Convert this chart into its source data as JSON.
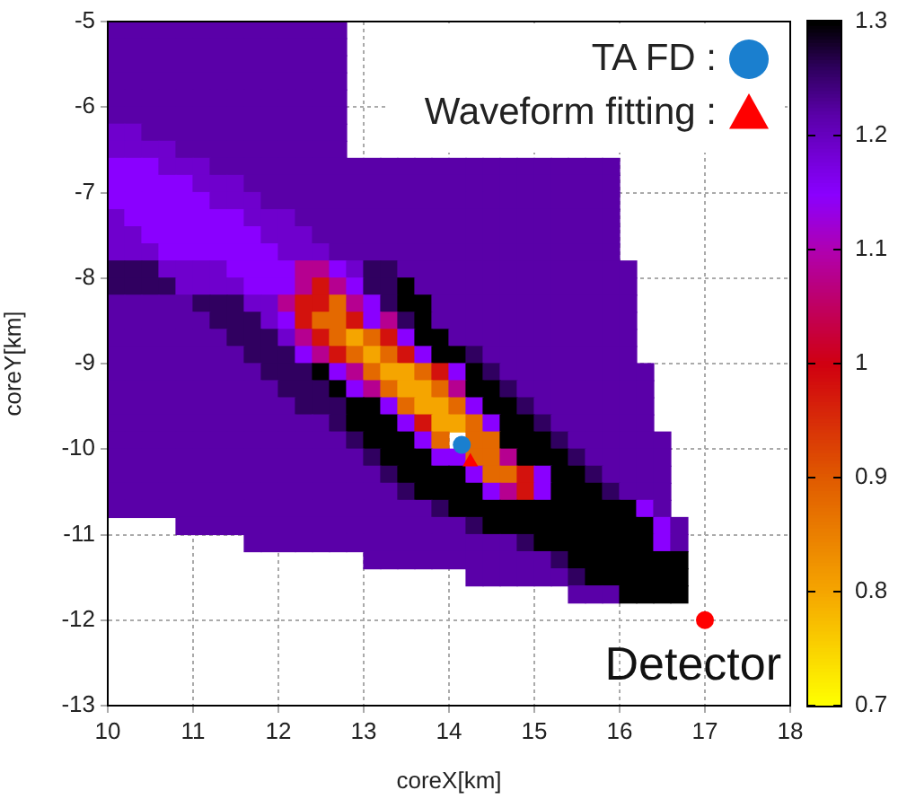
{
  "chart_data": {
    "type": "heatmap",
    "xlabel": "coreX[km]",
    "ylabel": "coreY[km]",
    "xlim": [
      10,
      18
    ],
    "xticks": [
      10,
      11,
      12,
      13,
      14,
      15,
      16,
      17,
      18
    ],
    "ylim": [
      -13,
      -5
    ],
    "yticks": [
      -13,
      -12,
      -11,
      -10,
      -9,
      -8,
      -7,
      -6,
      -5
    ],
    "grid": true,
    "legend": "top right",
    "clim": [
      0.7,
      1.3
    ],
    "cticks": [
      0.7,
      0.8,
      0.9,
      1,
      1.1,
      1.2,
      1.3
    ],
    "x": [
      10.1,
      10.3,
      10.5,
      10.7,
      10.9,
      11.1,
      11.3,
      11.5,
      11.7,
      11.9,
      12.1,
      12.3,
      12.5,
      12.7,
      12.9,
      13.1,
      13.3,
      13.5,
      13.7,
      13.9,
      14.1,
      14.3,
      14.5,
      14.7,
      14.9,
      15.1,
      15.3,
      15.5,
      15.7,
      15.9,
      16.1,
      16.3,
      16.5,
      16.7
    ],
    "y": [
      -5.1,
      -5.3,
      -5.5,
      -5.7,
      -5.9,
      -6.1,
      -6.3,
      -6.5,
      -6.7,
      -6.9,
      -7.1,
      -7.3,
      -7.5,
      -7.7,
      -7.9,
      -8.1,
      -8.3,
      -8.5,
      -8.7,
      -8.9,
      -9.1,
      -9.3,
      -9.5,
      -9.7,
      -9.9,
      -10.1,
      -10.3,
      -10.5,
      -10.7,
      -10.9,
      -11.1,
      -11.3,
      -11.5,
      -11.7
    ],
    "cells": [
      [
        1.22,
        1.22,
        1.22,
        1.22,
        1.22,
        1.22,
        1.22,
        1.22,
        1.22,
        1.22,
        1.22,
        1.22,
        1.22,
        1.22,
        null,
        null,
        null,
        null,
        null,
        null,
        null,
        null,
        null,
        null,
        null,
        null,
        null,
        null,
        null,
        null,
        null,
        null,
        null,
        null
      ],
      [
        1.22,
        1.22,
        1.22,
        1.22,
        1.22,
        1.22,
        1.22,
        1.22,
        1.22,
        1.22,
        1.22,
        1.22,
        1.22,
        1.22,
        null,
        null,
        null,
        null,
        null,
        null,
        null,
        null,
        null,
        null,
        null,
        null,
        null,
        null,
        null,
        null,
        null,
        null,
        null,
        null
      ],
      [
        1.22,
        1.22,
        1.22,
        1.22,
        1.22,
        1.22,
        1.22,
        1.22,
        1.22,
        1.22,
        1.22,
        1.22,
        1.22,
        1.22,
        null,
        null,
        null,
        null,
        null,
        null,
        null,
        null,
        null,
        null,
        null,
        null,
        null,
        null,
        null,
        null,
        null,
        null,
        null,
        null
      ],
      [
        1.22,
        1.22,
        1.22,
        1.22,
        1.22,
        1.22,
        1.22,
        1.22,
        1.22,
        1.22,
        1.22,
        1.22,
        1.22,
        1.22,
        null,
        null,
        null,
        null,
        null,
        null,
        null,
        null,
        null,
        null,
        null,
        null,
        null,
        null,
        null,
        null,
        null,
        null,
        null,
        null
      ],
      [
        1.22,
        1.22,
        1.22,
        1.22,
        1.22,
        1.22,
        1.22,
        1.22,
        1.22,
        1.22,
        1.22,
        1.22,
        1.22,
        1.22,
        null,
        null,
        null,
        null,
        null,
        null,
        null,
        null,
        null,
        null,
        null,
        null,
        null,
        null,
        null,
        null,
        null,
        null,
        null,
        null
      ],
      [
        1.22,
        1.22,
        1.22,
        1.22,
        1.22,
        1.22,
        1.22,
        1.22,
        1.22,
        1.22,
        1.22,
        1.22,
        1.22,
        1.22,
        null,
        null,
        null,
        null,
        null,
        null,
        null,
        null,
        null,
        null,
        null,
        null,
        null,
        null,
        null,
        null,
        null,
        null,
        null,
        null
      ],
      [
        1.19,
        1.19,
        1.22,
        1.22,
        1.22,
        1.22,
        1.22,
        1.22,
        1.22,
        1.22,
        1.22,
        1.22,
        1.22,
        1.22,
        null,
        null,
        null,
        null,
        null,
        null,
        null,
        null,
        null,
        null,
        null,
        null,
        null,
        null,
        null,
        null,
        null,
        null,
        null,
        null
      ],
      [
        1.19,
        1.19,
        1.19,
        1.19,
        1.22,
        1.22,
        1.22,
        1.22,
        1.22,
        1.22,
        1.22,
        1.22,
        1.22,
        1.22,
        null,
        null,
        null,
        null,
        null,
        null,
        null,
        null,
        null,
        null,
        null,
        null,
        null,
        null,
        null,
        null,
        null,
        null,
        null,
        null
      ],
      [
        1.15,
        1.15,
        1.15,
        1.19,
        1.19,
        1.19,
        1.22,
        1.22,
        1.22,
        1.22,
        1.22,
        1.22,
        1.22,
        1.22,
        1.22,
        1.22,
        1.22,
        1.22,
        1.22,
        1.22,
        1.22,
        1.22,
        1.22,
        1.22,
        1.22,
        1.22,
        1.22,
        1.22,
        1.22,
        1.22,
        null,
        null,
        null,
        null
      ],
      [
        1.15,
        1.15,
        1.15,
        1.15,
        1.15,
        1.19,
        1.19,
        1.19,
        1.22,
        1.22,
        1.22,
        1.22,
        1.22,
        1.22,
        1.22,
        1.22,
        1.22,
        1.22,
        1.22,
        1.22,
        1.22,
        1.22,
        1.22,
        1.22,
        1.22,
        1.22,
        1.22,
        1.22,
        1.22,
        1.22,
        null,
        null,
        null,
        null
      ],
      [
        1.15,
        1.15,
        1.15,
        1.15,
        1.15,
        1.15,
        1.19,
        1.19,
        1.19,
        1.22,
        1.22,
        1.22,
        1.22,
        1.22,
        1.22,
        1.22,
        1.22,
        1.22,
        1.22,
        1.22,
        1.22,
        1.22,
        1.22,
        1.22,
        1.22,
        1.22,
        1.22,
        1.22,
        1.22,
        1.22,
        null,
        null,
        null,
        null
      ],
      [
        1.19,
        1.15,
        1.15,
        1.15,
        1.15,
        1.15,
        1.15,
        1.15,
        1.19,
        1.19,
        1.19,
        1.22,
        1.22,
        1.22,
        1.22,
        1.22,
        1.22,
        1.22,
        1.22,
        1.22,
        1.22,
        1.22,
        1.22,
        1.22,
        1.22,
        1.22,
        1.22,
        1.22,
        1.22,
        1.22,
        null,
        null,
        null,
        null
      ],
      [
        1.19,
        1.19,
        1.15,
        1.15,
        1.15,
        1.15,
        1.15,
        1.15,
        1.15,
        1.19,
        1.19,
        1.19,
        1.22,
        1.22,
        1.22,
        1.22,
        1.22,
        1.22,
        1.22,
        1.22,
        1.22,
        1.22,
        1.22,
        1.22,
        1.22,
        1.22,
        1.22,
        1.22,
        1.22,
        1.22,
        null,
        null,
        null,
        null
      ],
      [
        1.19,
        1.19,
        1.19,
        1.15,
        1.15,
        1.15,
        1.15,
        1.15,
        1.15,
        1.15,
        1.19,
        1.19,
        1.19,
        1.22,
        1.22,
        1.22,
        1.22,
        1.22,
        1.22,
        1.22,
        1.22,
        1.22,
        1.22,
        1.22,
        1.22,
        1.22,
        1.22,
        1.22,
        1.22,
        1.22,
        null,
        null,
        null,
        null
      ],
      [
        1.26,
        1.26,
        1.26,
        1.19,
        1.19,
        1.19,
        1.19,
        1.15,
        1.15,
        1.15,
        1.15,
        1.08,
        1.08,
        1.15,
        1.19,
        1.26,
        1.26,
        1.22,
        1.22,
        1.22,
        1.22,
        1.22,
        1.22,
        1.22,
        1.22,
        1.22,
        1.22,
        1.22,
        1.22,
        1.22,
        1.22,
        null,
        null,
        null
      ],
      [
        1.26,
        1.26,
        1.26,
        1.26,
        1.19,
        1.19,
        1.19,
        1.19,
        1.15,
        1.15,
        1.15,
        1.08,
        0.98,
        1.08,
        1.15,
        1.26,
        1.26,
        1.3,
        1.22,
        1.22,
        1.22,
        1.22,
        1.22,
        1.22,
        1.22,
        1.22,
        1.22,
        1.22,
        1.22,
        1.22,
        1.22,
        null,
        null,
        null
      ],
      [
        1.22,
        1.22,
        1.22,
        1.22,
        1.22,
        1.26,
        1.26,
        1.26,
        1.19,
        1.19,
        1.08,
        0.98,
        0.98,
        0.88,
        1.08,
        1.15,
        1.26,
        1.3,
        1.3,
        1.22,
        1.22,
        1.22,
        1.22,
        1.22,
        1.22,
        1.22,
        1.22,
        1.22,
        1.22,
        1.22,
        1.22,
        null,
        null,
        null
      ],
      [
        1.22,
        1.22,
        1.22,
        1.22,
        1.22,
        1.22,
        1.26,
        1.26,
        1.26,
        1.19,
        1.15,
        0.98,
        0.88,
        0.88,
        0.98,
        1.15,
        1.08,
        1.26,
        1.3,
        1.22,
        1.22,
        1.22,
        1.22,
        1.22,
        1.22,
        1.22,
        1.22,
        1.22,
        1.22,
        1.22,
        1.22,
        null,
        null,
        null
      ],
      [
        1.22,
        1.22,
        1.22,
        1.22,
        1.22,
        1.22,
        1.22,
        1.26,
        1.26,
        1.26,
        1.19,
        1.08,
        0.98,
        0.88,
        0.8,
        0.88,
        0.98,
        1.15,
        1.3,
        1.3,
        1.22,
        1.22,
        1.22,
        1.22,
        1.22,
        1.22,
        1.22,
        1.22,
        1.22,
        1.22,
        1.22,
        null,
        null,
        null
      ],
      [
        1.22,
        1.22,
        1.22,
        1.22,
        1.22,
        1.22,
        1.22,
        1.22,
        1.26,
        1.26,
        1.26,
        1.15,
        1.08,
        0.98,
        0.88,
        0.8,
        0.88,
        0.98,
        1.15,
        1.3,
        1.3,
        1.26,
        1.22,
        1.22,
        1.22,
        1.22,
        1.22,
        1.22,
        1.22,
        1.22,
        1.22,
        null,
        null,
        null
      ],
      [
        1.22,
        1.22,
        1.22,
        1.22,
        1.22,
        1.22,
        1.22,
        1.22,
        1.22,
        1.26,
        1.26,
        1.26,
        1.3,
        1.15,
        1.08,
        0.88,
        0.8,
        0.8,
        0.88,
        0.98,
        1.15,
        1.3,
        1.26,
        1.22,
        1.22,
        1.22,
        1.22,
        1.22,
        1.22,
        1.22,
        1.22,
        1.22,
        null,
        null
      ],
      [
        1.22,
        1.22,
        1.22,
        1.22,
        1.22,
        1.22,
        1.22,
        1.22,
        1.22,
        1.22,
        1.26,
        1.26,
        1.26,
        1.3,
        1.15,
        1.08,
        0.88,
        0.8,
        0.8,
        0.88,
        1.08,
        1.3,
        1.3,
        1.26,
        1.22,
        1.22,
        1.22,
        1.22,
        1.22,
        1.22,
        1.22,
        1.22,
        null,
        null
      ],
      [
        1.22,
        1.22,
        1.22,
        1.22,
        1.22,
        1.22,
        1.22,
        1.22,
        1.22,
        1.22,
        1.22,
        1.26,
        1.26,
        1.26,
        1.3,
        1.3,
        1.15,
        0.88,
        0.8,
        0.8,
        0.88,
        1.15,
        1.3,
        1.3,
        1.26,
        1.22,
        1.22,
        1.22,
        1.22,
        1.22,
        1.22,
        1.22,
        null,
        null
      ],
      [
        1.22,
        1.22,
        1.22,
        1.22,
        1.22,
        1.22,
        1.22,
        1.22,
        1.22,
        1.22,
        1.22,
        1.22,
        1.22,
        1.26,
        1.3,
        1.3,
        1.3,
        1.15,
        0.98,
        0.8,
        0.8,
        0.88,
        1.15,
        1.3,
        1.3,
        1.26,
        1.22,
        1.22,
        1.22,
        1.22,
        1.22,
        1.22,
        null,
        null
      ],
      [
        1.22,
        1.22,
        1.22,
        1.22,
        1.22,
        1.22,
        1.22,
        1.22,
        1.22,
        1.22,
        1.22,
        1.22,
        1.22,
        1.22,
        1.26,
        1.3,
        1.3,
        1.3,
        1.15,
        0.88,
        null,
        0.88,
        0.88,
        1.3,
        1.3,
        1.3,
        1.26,
        1.22,
        1.22,
        1.22,
        1.22,
        1.22,
        1.22,
        null
      ],
      [
        1.22,
        1.22,
        1.22,
        1.22,
        1.22,
        1.22,
        1.22,
        1.22,
        1.22,
        1.22,
        1.22,
        1.22,
        1.22,
        1.22,
        1.22,
        1.26,
        1.3,
        1.3,
        1.3,
        1.15,
        1.15,
        0.88,
        0.88,
        1.08,
        1.3,
        1.3,
        1.3,
        1.26,
        1.22,
        1.22,
        1.22,
        1.22,
        1.22,
        null
      ],
      [
        1.22,
        1.22,
        1.22,
        1.22,
        1.22,
        1.22,
        1.22,
        1.22,
        1.22,
        1.22,
        1.22,
        1.22,
        1.22,
        1.22,
        1.22,
        1.22,
        1.26,
        1.3,
        1.3,
        1.3,
        1.3,
        1.15,
        0.88,
        0.88,
        0.98,
        1.15,
        1.3,
        1.3,
        1.26,
        1.22,
        1.22,
        1.22,
        1.22,
        null
      ],
      [
        1.22,
        1.22,
        1.22,
        1.22,
        1.22,
        1.22,
        1.22,
        1.22,
        1.22,
        1.22,
        1.22,
        1.22,
        1.22,
        1.22,
        1.22,
        1.22,
        1.22,
        1.26,
        1.3,
        1.3,
        1.3,
        1.3,
        1.15,
        1.08,
        0.98,
        1.15,
        1.3,
        1.3,
        1.3,
        1.26,
        1.22,
        1.22,
        1.22,
        null
      ],
      [
        1.22,
        1.22,
        1.22,
        1.22,
        1.22,
        1.22,
        1.22,
        1.22,
        1.22,
        1.22,
        1.22,
        1.22,
        1.22,
        1.22,
        1.22,
        1.22,
        1.22,
        1.22,
        1.22,
        1.26,
        1.3,
        1.3,
        1.3,
        1.3,
        1.3,
        1.3,
        1.3,
        1.3,
        1.3,
        1.3,
        1.3,
        1.15,
        1.22,
        null
      ],
      [
        null,
        null,
        null,
        null,
        1.22,
        1.22,
        1.22,
        1.22,
        1.22,
        1.22,
        1.22,
        1.22,
        1.22,
        1.22,
        1.22,
        1.22,
        1.22,
        1.22,
        1.22,
        1.22,
        1.22,
        1.26,
        1.3,
        1.3,
        1.3,
        1.3,
        1.3,
        1.3,
        1.3,
        1.3,
        1.3,
        1.3,
        1.15,
        1.22
      ],
      [
        null,
        null,
        null,
        null,
        null,
        null,
        null,
        null,
        1.22,
        1.22,
        1.22,
        1.22,
        1.22,
        1.22,
        1.22,
        1.22,
        1.22,
        1.22,
        1.22,
        1.22,
        1.22,
        1.22,
        1.22,
        1.22,
        1.26,
        1.3,
        1.3,
        1.3,
        1.3,
        1.3,
        1.3,
        1.3,
        1.15,
        1.22
      ],
      [
        null,
        null,
        null,
        null,
        null,
        null,
        null,
        null,
        null,
        null,
        null,
        null,
        null,
        null,
        null,
        1.22,
        1.22,
        1.22,
        1.22,
        1.22,
        1.22,
        1.22,
        1.22,
        1.22,
        1.22,
        1.22,
        1.26,
        1.3,
        1.3,
        1.3,
        1.3,
        1.3,
        1.3,
        1.3
      ],
      [
        null,
        null,
        null,
        null,
        null,
        null,
        null,
        null,
        null,
        null,
        null,
        null,
        null,
        null,
        null,
        null,
        null,
        null,
        null,
        null,
        null,
        1.22,
        1.22,
        1.22,
        1.22,
        1.22,
        1.22,
        1.26,
        1.3,
        1.3,
        1.3,
        1.3,
        1.3,
        1.3
      ],
      [
        null,
        null,
        null,
        null,
        null,
        null,
        null,
        null,
        null,
        null,
        null,
        null,
        null,
        null,
        null,
        null,
        null,
        null,
        null,
        null,
        null,
        null,
        null,
        null,
        null,
        null,
        null,
        1.22,
        1.22,
        1.22,
        1.3,
        1.3,
        1.3,
        1.3
      ]
    ],
    "series": [
      {
        "name": "TA FD :",
        "type": "scatter",
        "marker": "circle",
        "color": "#1a7fcf",
        "x": [
          14.15
        ],
        "values": [
          -9.95
        ]
      },
      {
        "name": "Waveform fitting :",
        "type": "scatter",
        "marker": "triangle",
        "color": "#ff0000",
        "x": [
          14.25
        ],
        "values": [
          -10.15
        ]
      },
      {
        "type": "scatter",
        "marker": "circle",
        "color": "#ff0000",
        "x": [
          17
        ],
        "values": [
          -12
        ]
      }
    ],
    "annotations": [
      {
        "text": "Detector",
        "x": 17,
        "y": -12
      }
    ]
  }
}
